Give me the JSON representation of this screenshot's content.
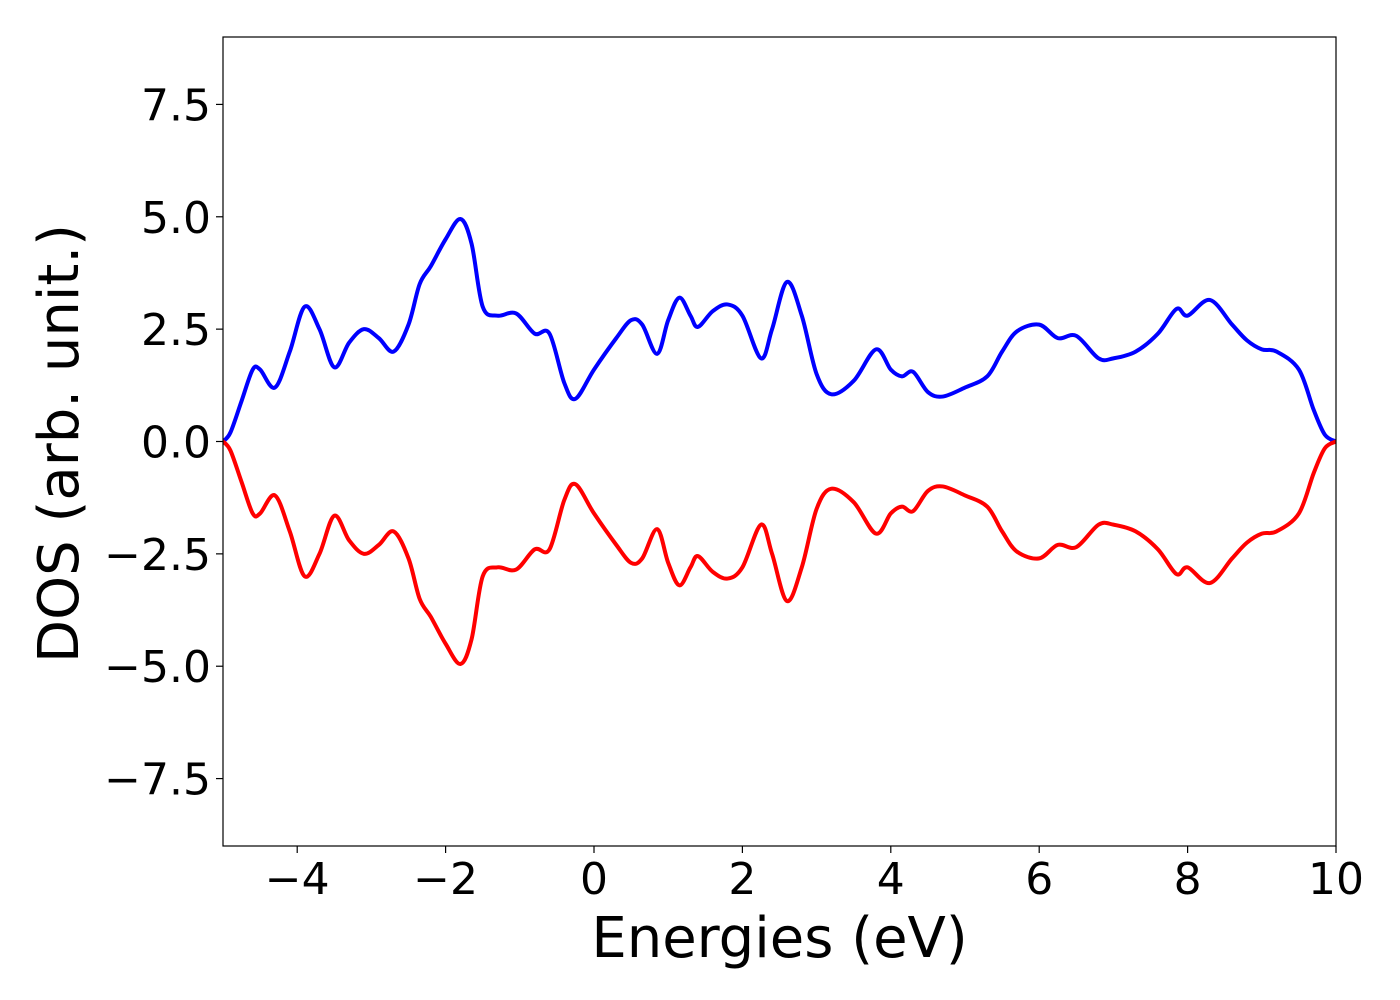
{
  "chart_data": {
    "type": "line",
    "xlabel": "Energies (eV)",
    "ylabel": "DOS (arb. unit.)",
    "xlim": [
      -5,
      10
    ],
    "ylim": [
      -9,
      9
    ],
    "grid": false,
    "x_ticks": [
      -4,
      -2,
      0,
      2,
      4,
      6,
      8,
      10
    ],
    "x_tick_labels": [
      "−4",
      "−2",
      "0",
      "2",
      "4",
      "6",
      "8",
      "10"
    ],
    "y_ticks": [
      -7.5,
      -5.0,
      -2.5,
      0.0,
      2.5,
      5.0,
      7.5
    ],
    "y_tick_labels": [
      "−7.5",
      "−5.0",
      "−2.5",
      "0.0",
      "2.5",
      "5.0",
      "7.5"
    ],
    "series": [
      {
        "color": "#0000ff",
        "points": [
          [
            -5.0,
            0.0
          ],
          [
            -4.9,
            0.2
          ],
          [
            -4.75,
            0.9
          ],
          [
            -4.6,
            1.6
          ],
          [
            -4.5,
            1.6
          ],
          [
            -4.3,
            1.2
          ],
          [
            -4.1,
            2.0
          ],
          [
            -3.9,
            3.0
          ],
          [
            -3.7,
            2.5
          ],
          [
            -3.5,
            1.65
          ],
          [
            -3.3,
            2.2
          ],
          [
            -3.1,
            2.5
          ],
          [
            -2.9,
            2.3
          ],
          [
            -2.7,
            2.0
          ],
          [
            -2.5,
            2.6
          ],
          [
            -2.35,
            3.5
          ],
          [
            -2.2,
            3.9
          ],
          [
            -2.0,
            4.5
          ],
          [
            -1.8,
            4.95
          ],
          [
            -1.65,
            4.4
          ],
          [
            -1.5,
            3.0
          ],
          [
            -1.3,
            2.8
          ],
          [
            -1.05,
            2.85
          ],
          [
            -0.8,
            2.4
          ],
          [
            -0.6,
            2.4
          ],
          [
            -0.4,
            1.3
          ],
          [
            -0.25,
            0.95
          ],
          [
            0.0,
            1.6
          ],
          [
            0.3,
            2.3
          ],
          [
            0.5,
            2.7
          ],
          [
            0.65,
            2.6
          ],
          [
            0.85,
            1.95
          ],
          [
            1.0,
            2.7
          ],
          [
            1.15,
            3.2
          ],
          [
            1.3,
            2.8
          ],
          [
            1.4,
            2.55
          ],
          [
            1.6,
            2.9
          ],
          [
            1.8,
            3.05
          ],
          [
            2.0,
            2.8
          ],
          [
            2.25,
            1.85
          ],
          [
            2.4,
            2.5
          ],
          [
            2.6,
            3.55
          ],
          [
            2.8,
            2.8
          ],
          [
            3.0,
            1.5
          ],
          [
            3.2,
            1.05
          ],
          [
            3.5,
            1.35
          ],
          [
            3.8,
            2.05
          ],
          [
            4.0,
            1.6
          ],
          [
            4.15,
            1.45
          ],
          [
            4.3,
            1.55
          ],
          [
            4.5,
            1.1
          ],
          [
            4.7,
            1.0
          ],
          [
            5.0,
            1.2
          ],
          [
            5.3,
            1.45
          ],
          [
            5.5,
            2.0
          ],
          [
            5.7,
            2.45
          ],
          [
            6.0,
            2.6
          ],
          [
            6.25,
            2.3
          ],
          [
            6.5,
            2.35
          ],
          [
            6.8,
            1.85
          ],
          [
            7.0,
            1.85
          ],
          [
            7.3,
            2.0
          ],
          [
            7.6,
            2.4
          ],
          [
            7.85,
            2.95
          ],
          [
            8.0,
            2.8
          ],
          [
            8.3,
            3.15
          ],
          [
            8.6,
            2.6
          ],
          [
            8.8,
            2.25
          ],
          [
            9.0,
            2.05
          ],
          [
            9.2,
            2.0
          ],
          [
            9.5,
            1.6
          ],
          [
            9.7,
            0.7
          ],
          [
            9.85,
            0.15
          ],
          [
            10.0,
            0.0
          ]
        ]
      },
      {
        "color": "#ff0000",
        "points": [
          [
            -5.0,
            0.0
          ],
          [
            -4.9,
            -0.2
          ],
          [
            -4.75,
            -0.9
          ],
          [
            -4.6,
            -1.6
          ],
          [
            -4.5,
            -1.6
          ],
          [
            -4.3,
            -1.2
          ],
          [
            -4.1,
            -2.0
          ],
          [
            -3.9,
            -3.0
          ],
          [
            -3.7,
            -2.5
          ],
          [
            -3.5,
            -1.65
          ],
          [
            -3.3,
            -2.2
          ],
          [
            -3.1,
            -2.5
          ],
          [
            -2.9,
            -2.3
          ],
          [
            -2.7,
            -2.0
          ],
          [
            -2.5,
            -2.6
          ],
          [
            -2.35,
            -3.5
          ],
          [
            -2.2,
            -3.9
          ],
          [
            -2.0,
            -4.5
          ],
          [
            -1.8,
            -4.95
          ],
          [
            -1.65,
            -4.4
          ],
          [
            -1.5,
            -3.0
          ],
          [
            -1.3,
            -2.8
          ],
          [
            -1.05,
            -2.85
          ],
          [
            -0.8,
            -2.4
          ],
          [
            -0.6,
            -2.4
          ],
          [
            -0.4,
            -1.3
          ],
          [
            -0.25,
            -0.95
          ],
          [
            0.0,
            -1.6
          ],
          [
            0.3,
            -2.3
          ],
          [
            0.5,
            -2.7
          ],
          [
            0.65,
            -2.6
          ],
          [
            0.85,
            -1.95
          ],
          [
            1.0,
            -2.7
          ],
          [
            1.15,
            -3.2
          ],
          [
            1.3,
            -2.8
          ],
          [
            1.4,
            -2.55
          ],
          [
            1.6,
            -2.9
          ],
          [
            1.8,
            -3.05
          ],
          [
            2.0,
            -2.8
          ],
          [
            2.25,
            -1.85
          ],
          [
            2.4,
            -2.5
          ],
          [
            2.6,
            -3.55
          ],
          [
            2.8,
            -2.8
          ],
          [
            3.0,
            -1.5
          ],
          [
            3.2,
            -1.05
          ],
          [
            3.5,
            -1.35
          ],
          [
            3.8,
            -2.05
          ],
          [
            4.0,
            -1.6
          ],
          [
            4.15,
            -1.45
          ],
          [
            4.3,
            -1.55
          ],
          [
            4.5,
            -1.1
          ],
          [
            4.7,
            -1.0
          ],
          [
            5.0,
            -1.2
          ],
          [
            5.3,
            -1.45
          ],
          [
            5.5,
            -2.0
          ],
          [
            5.7,
            -2.45
          ],
          [
            6.0,
            -2.6
          ],
          [
            6.25,
            -2.3
          ],
          [
            6.5,
            -2.35
          ],
          [
            6.8,
            -1.85
          ],
          [
            7.0,
            -1.85
          ],
          [
            7.3,
            -2.0
          ],
          [
            7.6,
            -2.4
          ],
          [
            7.85,
            -2.95
          ],
          [
            8.0,
            -2.8
          ],
          [
            8.3,
            -3.15
          ],
          [
            8.6,
            -2.6
          ],
          [
            8.8,
            -2.25
          ],
          [
            9.0,
            -2.05
          ],
          [
            9.2,
            -2.0
          ],
          [
            9.5,
            -1.6
          ],
          [
            9.7,
            -0.7
          ],
          [
            9.85,
            -0.15
          ],
          [
            10.0,
            0.0
          ]
        ]
      }
    ]
  }
}
